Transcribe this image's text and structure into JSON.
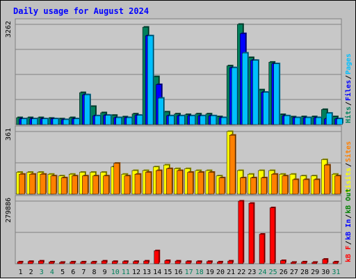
{
  "title": "Daily usage for August 2024",
  "colors": {
    "title": "#0000ff",
    "background": "#c0c0c0",
    "panel": "#c8c8c8",
    "hits": "#00805c",
    "files": "#0000ff",
    "pages": "#00c0ff",
    "visits": "#ffff00",
    "sites": "#ff8000",
    "kbytes_in": "#0000ff",
    "kbytes_out": "#008000",
    "kbytes_f": "#ff0000",
    "weekend_day": "#00805c",
    "weekday": "#000000"
  },
  "chart_data": [
    {
      "type": "bar",
      "name": "hits-files-pages",
      "ymax_label": "3262",
      "ylim": [
        0,
        3262
      ],
      "legend": [
        {
          "label": "Hits",
          "color": "#00805c"
        },
        {
          "label": "/",
          "color": "#000000"
        },
        {
          "label": "Files",
          "color": "#0000ff"
        },
        {
          "label": "/",
          "color": "#000000"
        },
        {
          "label": "Pages",
          "color": "#00c0ff"
        }
      ],
      "series": [
        {
          "name": "Hits",
          "color": "#00805c",
          "values": [
            225,
            225,
            225,
            205,
            185,
            225,
            1040,
            590,
            385,
            300,
            250,
            345,
            3170,
            1560,
            410,
            345,
            325,
            345,
            345,
            255,
            1910,
            3262,
            2180,
            1130,
            2030,
            325,
            250,
            255,
            255,
            490,
            255
          ]
        },
        {
          "name": "Files",
          "color": "#0000ff",
          "values": [
            185,
            185,
            185,
            185,
            160,
            185,
            970,
            285,
            300,
            225,
            225,
            300,
            2890,
            1300,
            285,
            285,
            285,
            285,
            285,
            225,
            1850,
            2960,
            2090,
            1050,
            1980,
            285,
            225,
            225,
            225,
            185,
            185
          ]
        },
        {
          "name": "Pages",
          "color": "#00c0ff",
          "values": [
            185,
            185,
            185,
            185,
            160,
            185,
            970,
            285,
            300,
            225,
            225,
            300,
            2890,
            860,
            285,
            285,
            285,
            285,
            285,
            225,
            1850,
            2330,
            2090,
            1050,
            1980,
            285,
            225,
            225,
            225,
            370,
            185
          ]
        }
      ]
    },
    {
      "type": "bar",
      "name": "visits-sites",
      "ymax_label": "361",
      "ylim": [
        0,
        361
      ],
      "legend": [
        {
          "label": "Visits",
          "color": "#ffff00"
        },
        {
          "label": "/",
          "color": "#000000"
        },
        {
          "label": "Sites",
          "color": "#ff8000"
        }
      ],
      "series": [
        {
          "name": "Visits",
          "color": "#ffff00",
          "values": [
            126,
            126,
            126,
            115,
            105,
            115,
            126,
            126,
            126,
            157,
            115,
            136,
            136,
            157,
            168,
            147,
            147,
            136,
            136,
            105,
            361,
            136,
            115,
            136,
            136,
            115,
            115,
            105,
            105,
            199,
            115
          ]
        },
        {
          "name": "Sites",
          "color": "#ff8000",
          "values": [
            115,
            115,
            115,
            105,
            94,
            105,
            105,
            105,
            105,
            178,
            105,
            115,
            126,
            136,
            147,
            136,
            126,
            126,
            126,
            94,
            340,
            94,
            94,
            94,
            115,
            105,
            84,
            84,
            84,
            168,
            105
          ]
        }
      ]
    },
    {
      "type": "bar",
      "name": "kbytes",
      "ymax_label": "279886",
      "ylim": [
        0,
        279886
      ],
      "legend": [
        {
          "label": "kB F",
          "color": "#ff0000"
        },
        {
          "label": "/",
          "color": "#000000"
        },
        {
          "label": "kB In",
          "color": "#0000ff"
        },
        {
          "label": "/",
          "color": "#000000"
        },
        {
          "label": "kB Out",
          "color": "#008000"
        }
      ],
      "series": [
        {
          "name": "kB F",
          "color": "#ff0000",
          "values": [
            8000,
            10000,
            12000,
            8000,
            6000,
            8000,
            8000,
            8000,
            12000,
            10000,
            10000,
            10000,
            12000,
            58000,
            14000,
            12000,
            10000,
            10000,
            10000,
            8000,
            12000,
            279886,
            270000,
            132000,
            250000,
            14000,
            6000,
            8000,
            6000,
            20000,
            8000
          ]
        }
      ]
    }
  ],
  "x_axis": {
    "labels": [
      "1",
      "2",
      "3",
      "4",
      "5",
      "6",
      "7",
      "8",
      "9",
      "10",
      "11",
      "12",
      "13",
      "14",
      "15",
      "16",
      "17",
      "18",
      "19",
      "20",
      "21",
      "22",
      "23",
      "24",
      "25",
      "26",
      "27",
      "28",
      "29",
      "30",
      "31"
    ],
    "weekend": [
      false,
      false,
      true,
      true,
      false,
      false,
      false,
      false,
      false,
      true,
      true,
      false,
      false,
      false,
      false,
      false,
      true,
      true,
      false,
      false,
      false,
      false,
      false,
      true,
      true,
      false,
      false,
      false,
      false,
      false,
      true
    ]
  }
}
